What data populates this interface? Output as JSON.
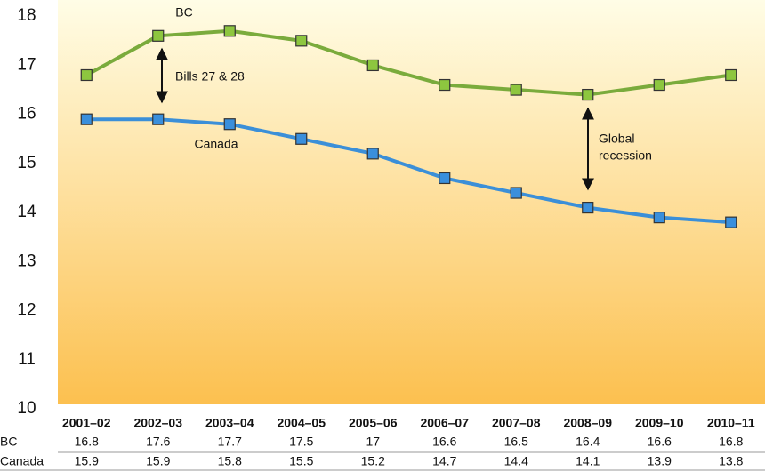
{
  "chart_data": {
    "type": "line",
    "categories": [
      "2001–02",
      "2002–03",
      "2003–04",
      "2004–05",
      "2005–06",
      "2006–07",
      "2007–08",
      "2008–09",
      "2009–10",
      "2010–11"
    ],
    "series": [
      {
        "name": "BC",
        "color": "#7aab3c",
        "marker_color": "#8dc63f",
        "values": [
          16.8,
          17.6,
          17.7,
          17.5,
          17,
          16.6,
          16.5,
          16.4,
          16.6,
          16.8
        ]
      },
      {
        "name": "Canada",
        "color": "#3b8fd8",
        "marker_color": "#3a8fdc",
        "values": [
          15.9,
          15.9,
          15.8,
          15.5,
          15.2,
          14.7,
          14.4,
          14.1,
          13.9,
          13.8
        ]
      }
    ],
    "ylim": [
      10,
      18.33
    ],
    "yticks": [
      10,
      11,
      12,
      13,
      14,
      15,
      16,
      17,
      18
    ],
    "grid": false,
    "annotations": [
      "Bills 27 & 28",
      "Global",
      "recession"
    ]
  }
}
